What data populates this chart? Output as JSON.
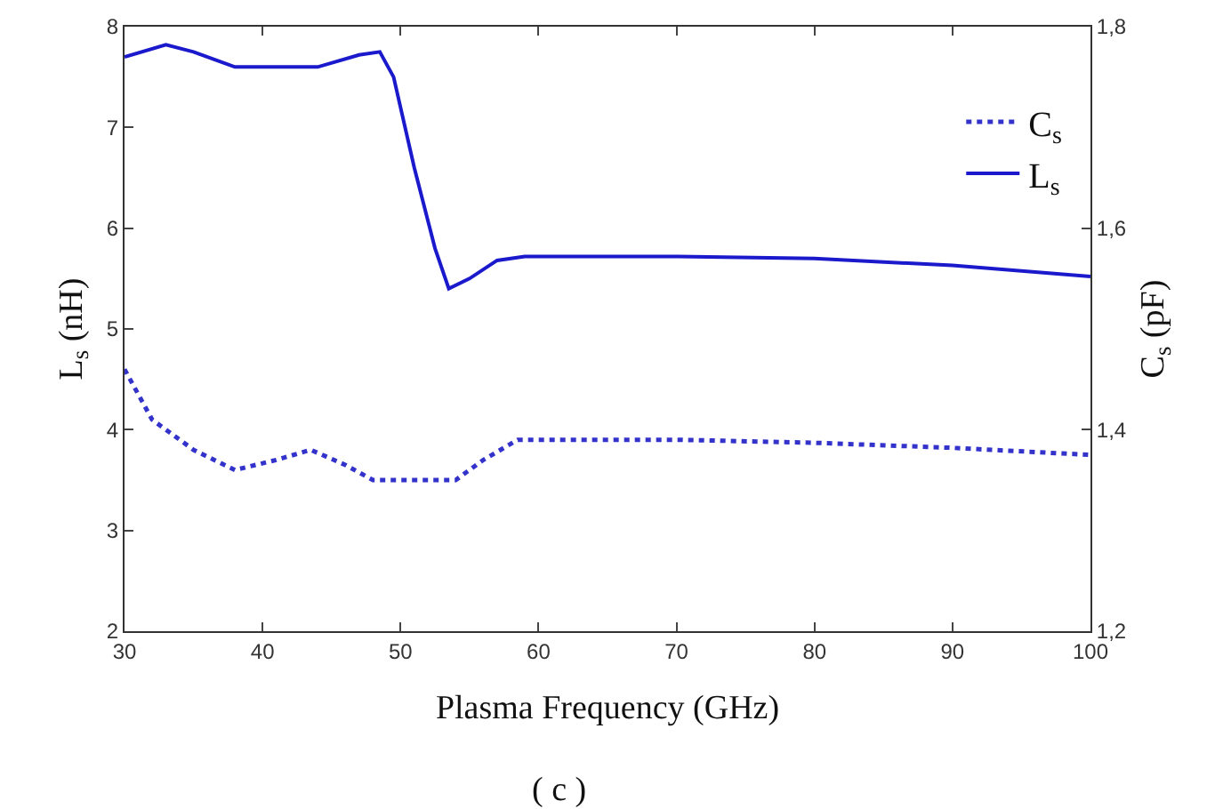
{
  "chart_data": {
    "type": "line",
    "xlabel": "Plasma Frequency (GHz)",
    "ylabel": "L$_{s}$ (nH)",
    "y2label": "C$_{s}$ (pF)",
    "xlim": [
      30,
      100
    ],
    "xticks": [
      30,
      40,
      50,
      60,
      70,
      80,
      90,
      100
    ],
    "ylim": [
      2,
      8
    ],
    "yticks": [
      2,
      3,
      4,
      5,
      6,
      7,
      8
    ],
    "y2lim": [
      1.2,
      1.8
    ],
    "y2ticks": [
      {
        "value": 1.2,
        "label": "1,2"
      },
      {
        "value": 1.4,
        "label": "1,4"
      },
      {
        "value": 1.6,
        "label": "1,6"
      },
      {
        "value": 1.8,
        "label": "1,8"
      }
    ],
    "grid": false,
    "legend": "top right",
    "marker": "none",
    "series": [
      {
        "name": "C$_{s}$",
        "color": "#3333cc",
        "axis": "y2",
        "line_style": "dotted",
        "x": [
          30,
          32,
          35,
          38,
          41,
          43.5,
          46,
          48,
          54,
          56,
          58.5,
          70,
          80,
          90,
          100
        ],
        "values": [
          1.46,
          1.41,
          1.38,
          1.36,
          1.37,
          1.38,
          1.365,
          1.35,
          1.35,
          1.37,
          1.39,
          1.39,
          1.387,
          1.382,
          1.375
        ]
      },
      {
        "name": "L$_{s}$",
        "color": "#1a1acc",
        "line_style": "solid",
        "x": [
          30,
          33,
          35,
          38,
          44,
          47,
          48.5,
          49.5,
          51,
          52.5,
          53.5,
          55,
          57,
          59,
          70,
          80,
          90,
          100
        ],
        "values": [
          7.7,
          7.82,
          7.75,
          7.6,
          7.6,
          7.72,
          7.75,
          7.5,
          6.6,
          5.8,
          5.4,
          5.5,
          5.68,
          5.72,
          5.72,
          5.7,
          5.63,
          5.52
        ]
      }
    ],
    "annotations": [
      "( c )"
    ]
  }
}
